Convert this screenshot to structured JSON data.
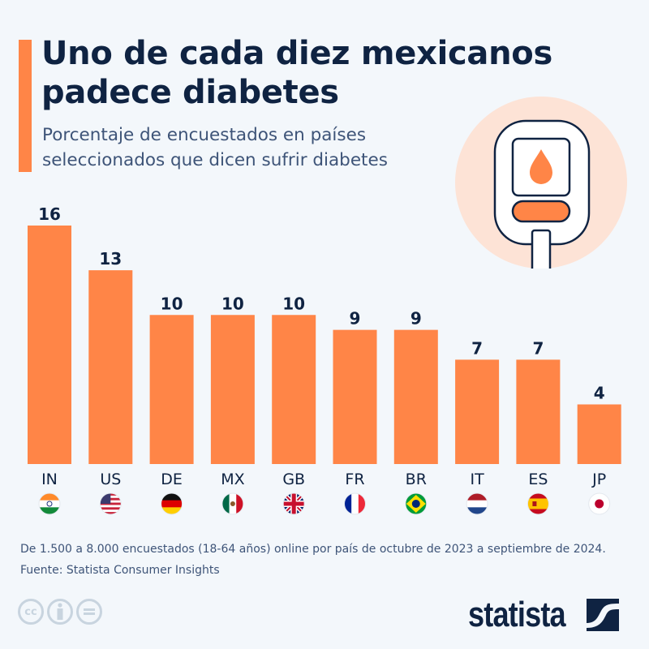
{
  "header": {
    "title": "Uno de cada diez mexicanos padece diabetes",
    "subtitle": "Porcentaje de encuestados en países seleccionados que dicen sufrir diabetes"
  },
  "colors": {
    "bar": "#ff8547",
    "accent": "#ff8547",
    "text_dark": "#0f2342",
    "text_muted": "#3e5478",
    "hero_circle": "#fde3d6",
    "background": "#f3f7fb"
  },
  "hero_icon": "glucose-meter-icon",
  "chart_data": {
    "type": "bar",
    "title": "Uno de cada diez mexicanos padece diabetes",
    "subtitle": "Porcentaje de encuestados en países seleccionados que dicen sufrir diabetes",
    "categories": [
      "IN",
      "US",
      "DE",
      "MX",
      "GB",
      "FR",
      "BR",
      "IT",
      "ES",
      "JP"
    ],
    "values": [
      16,
      13,
      10,
      10,
      10,
      9,
      9,
      7,
      7,
      4
    ],
    "value_labels": [
      "16",
      "13",
      "10",
      "10",
      "10",
      "9",
      "9",
      "7",
      "7",
      "4"
    ],
    "flags": [
      "india-flag",
      "usa-flag",
      "germany-flag",
      "mexico-flag",
      "uk-flag",
      "france-flag",
      "brazil-flag",
      "netherlands-style-flag",
      "spain-flag",
      "japan-flag"
    ],
    "xlabel": "",
    "ylabel": "",
    "ylim": [
      0,
      16
    ],
    "grid": false,
    "legend": "none"
  },
  "footer": {
    "note": "De 1.500 a 8.000 encuestados (18-64 años) online por país de octubre de 2023 a septiembre de 2024.",
    "source": "Fuente: Statista Consumer Insights",
    "license_icons": [
      "cc-icon",
      "attribution-icon",
      "no-derivatives-icon"
    ],
    "cc_label": "cc",
    "nd_label": "=",
    "brand": "statista"
  }
}
